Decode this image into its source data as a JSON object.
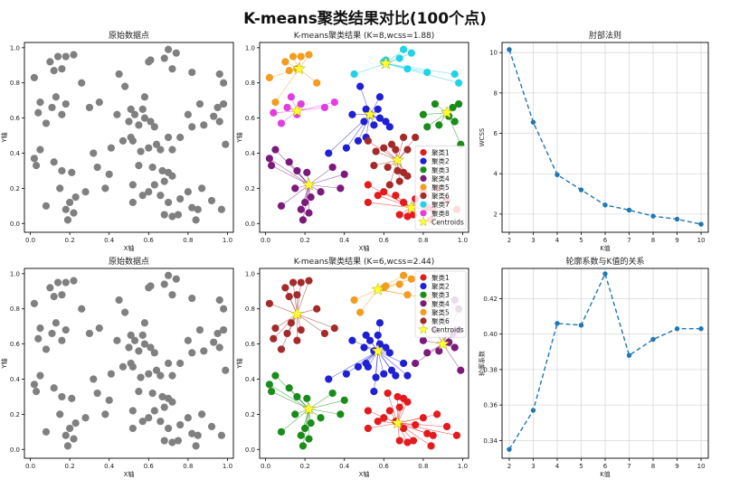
{
  "suptitle": "K-means聚类结果对比(100个点)",
  "chart_data": [
    {
      "id": "raw-top",
      "type": "scatter",
      "title": "原始数据点",
      "xlabel": "X轴",
      "ylabel": "Y轴",
      "xlim": [
        -0.03,
        1.03
      ],
      "ylim": [
        -0.05,
        1.03
      ],
      "xticks": [
        0.0,
        0.2,
        0.4,
        0.6,
        0.8,
        1.0
      ],
      "yticks": [
        0.0,
        0.2,
        0.4,
        0.6,
        0.8,
        1.0
      ],
      "tick_labels_x": [
        "0.0",
        "0.2",
        "0.4",
        "0.6",
        "0.8",
        "1.0"
      ],
      "tick_labels_y": [
        "0.0",
        "0.2",
        "0.4",
        "0.6",
        "0.8",
        "1.0"
      ],
      "grid": false,
      "point_color": "#808080",
      "dataset": "points"
    },
    {
      "id": "kmeans-8",
      "type": "scatter",
      "title": "K-means聚类结果 (K=8,wcss=1.88)",
      "xlabel": "X轴",
      "ylabel": "Y轴",
      "xlim": [
        -0.03,
        1.03
      ],
      "ylim": [
        -0.05,
        1.03
      ],
      "xticks": [
        0.0,
        0.2,
        0.4,
        0.6,
        0.8,
        1.0
      ],
      "yticks": [
        0.0,
        0.2,
        0.4,
        0.6,
        0.8,
        1.0
      ],
      "tick_labels_x": [
        "0.0",
        "0.2",
        "0.4",
        "0.6",
        "0.8",
        "1.0"
      ],
      "tick_labels_y": [
        "0.0",
        "0.2",
        "0.4",
        "0.6",
        "0.8",
        "1.0"
      ],
      "grid": false,
      "legend_position": "lower-right",
      "series": [
        {
          "name": "聚类1",
          "color": "#e41a1c",
          "centroid": [
            0.74,
            0.09
          ]
        },
        {
          "name": "聚类2",
          "color": "#1f1fd6",
          "centroid": [
            0.53,
            0.62
          ]
        },
        {
          "name": "聚类3",
          "color": "#1a8c1a",
          "centroid": [
            0.92,
            0.63
          ]
        },
        {
          "name": "聚类4",
          "color": "#7b1a7b",
          "centroid": [
            0.22,
            0.22
          ]
        },
        {
          "name": "聚类5",
          "color": "#f39c1f",
          "centroid": [
            0.17,
            0.88
          ]
        },
        {
          "name": "聚类6",
          "color": "#a52a2a",
          "centroid": [
            0.67,
            0.36
          ]
        },
        {
          "name": "聚类7",
          "color": "#22d3e6",
          "centroid": [
            0.61,
            0.91
          ]
        },
        {
          "name": "聚类8",
          "color": "#e23ce2",
          "centroid": [
            0.16,
            0.64
          ]
        }
      ],
      "centroids_label": "Centroids",
      "centroid_color": "#ffff33",
      "dataset": "points",
      "labels_key": "labels_k8"
    },
    {
      "id": "elbow",
      "type": "line",
      "title": "肘部法则",
      "xlabel": "K值",
      "ylabel": "WCSS",
      "xlim": [
        1.7,
        10.3
      ],
      "ylim": [
        1.1,
        10.5
      ],
      "xticks": [
        2,
        3,
        4,
        5,
        6,
        7,
        8,
        9,
        10
      ],
      "yticks": [
        2,
        4,
        6,
        8,
        10
      ],
      "tick_labels_x": [
        "2",
        "3",
        "4",
        "5",
        "6",
        "7",
        "8",
        "9",
        "10"
      ],
      "tick_labels_y": [
        "2",
        "4",
        "6",
        "8",
        "10"
      ],
      "grid": true,
      "line_color": "#1f77b4",
      "line_style": "dashed",
      "x": [
        2,
        3,
        4,
        5,
        6,
        7,
        8,
        9,
        10
      ],
      "values": [
        10.15,
        6.55,
        3.95,
        3.2,
        2.45,
        2.2,
        1.9,
        1.75,
        1.5
      ]
    },
    {
      "id": "raw-bottom",
      "type": "scatter",
      "title": "原始数据点",
      "xlabel": "X轴",
      "ylabel": "Y轴",
      "xlim": [
        -0.03,
        1.03
      ],
      "ylim": [
        -0.05,
        1.03
      ],
      "xticks": [
        0.0,
        0.2,
        0.4,
        0.6,
        0.8,
        1.0
      ],
      "yticks": [
        0.0,
        0.2,
        0.4,
        0.6,
        0.8,
        1.0
      ],
      "tick_labels_x": [
        "0.0",
        "0.2",
        "0.4",
        "0.6",
        "0.8",
        "1.0"
      ],
      "tick_labels_y": [
        "0.0",
        "0.2",
        "0.4",
        "0.6",
        "0.8",
        "1.0"
      ],
      "grid": false,
      "point_color": "#808080",
      "dataset": "points"
    },
    {
      "id": "kmeans-6",
      "type": "scatter",
      "title": "K-means聚类结果 (K=6,wcss=2.44)",
      "xlabel": "X轴",
      "ylabel": "Y轴",
      "xlim": [
        -0.03,
        1.03
      ],
      "ylim": [
        -0.05,
        1.03
      ],
      "xticks": [
        0.0,
        0.2,
        0.4,
        0.6,
        0.8,
        1.0
      ],
      "yticks": [
        0.0,
        0.2,
        0.4,
        0.6,
        0.8,
        1.0
      ],
      "tick_labels_x": [
        "0.0",
        "0.2",
        "0.4",
        "0.6",
        "0.8",
        "1.0"
      ],
      "tick_labels_y": [
        "0.0",
        "0.2",
        "0.4",
        "0.6",
        "0.8",
        "1.0"
      ],
      "grid": false,
      "legend_position": "upper-right",
      "series": [
        {
          "name": "聚类1",
          "color": "#e41a1c",
          "centroid": [
            0.67,
            0.15
          ]
        },
        {
          "name": "聚类2",
          "color": "#1f1fd6",
          "centroid": [
            0.57,
            0.56
          ]
        },
        {
          "name": "聚类3",
          "color": "#1a8c1a",
          "centroid": [
            0.22,
            0.23
          ]
        },
        {
          "name": "聚类4",
          "color": "#7b1a7b",
          "centroid": [
            0.9,
            0.6
          ]
        },
        {
          "name": "聚类5",
          "color": "#f39c1f",
          "centroid": [
            0.57,
            0.91
          ]
        },
        {
          "name": "聚类6",
          "color": "#a52a2a",
          "centroid": [
            0.16,
            0.77
          ]
        }
      ],
      "centroids_label": "Centroids",
      "centroid_color": "#ffff33",
      "dataset": "points",
      "labels_key": "labels_k6"
    },
    {
      "id": "silhouette",
      "type": "line",
      "title": "轮廓系数与K值的关系",
      "xlabel": "K值",
      "ylabel": "轮廓系数",
      "xlim": [
        1.7,
        10.3
      ],
      "ylim": [
        0.33,
        0.437
      ],
      "xticks": [
        2,
        3,
        4,
        5,
        6,
        7,
        8,
        9,
        10
      ],
      "yticks": [
        0.34,
        0.36,
        0.38,
        0.4,
        0.42
      ],
      "tick_labels_x": [
        "2",
        "3",
        "4",
        "5",
        "6",
        "7",
        "8",
        "9",
        "10"
      ],
      "tick_labels_y": [
        "0.34",
        "0.36",
        "0.38",
        "0.40",
        "0.42"
      ],
      "grid": true,
      "line_color": "#1f77b4",
      "line_style": "dashed",
      "x": [
        2,
        3,
        4,
        5,
        6,
        7,
        8,
        9,
        10
      ],
      "values": [
        0.335,
        0.357,
        0.406,
        0.405,
        0.434,
        0.388,
        0.397,
        0.403,
        0.403
      ]
    }
  ],
  "points": [
    [
      0.02,
      0.83
    ],
    [
      0.05,
      0.69
    ],
    [
      0.1,
      0.92
    ],
    [
      0.14,
      0.95
    ],
    [
      0.18,
      0.95
    ],
    [
      0.22,
      0.96
    ],
    [
      0.12,
      0.87
    ],
    [
      0.16,
      0.88
    ],
    [
      0.26,
      0.8
    ],
    [
      0.04,
      0.63
    ],
    [
      0.11,
      0.66
    ],
    [
      0.13,
      0.72
    ],
    [
      0.16,
      0.62
    ],
    [
      0.18,
      0.68
    ],
    [
      0.08,
      0.57
    ],
    [
      0.3,
      0.66
    ],
    [
      0.35,
      0.69
    ],
    [
      0.05,
      0.42
    ],
    [
      0.02,
      0.37
    ],
    [
      0.03,
      0.33
    ],
    [
      0.12,
      0.35
    ],
    [
      0.16,
      0.3
    ],
    [
      0.21,
      0.29
    ],
    [
      0.15,
      0.2
    ],
    [
      0.23,
      0.15
    ],
    [
      0.2,
      0.12
    ],
    [
      0.18,
      0.08
    ],
    [
      0.08,
      0.1
    ],
    [
      0.22,
      0.06
    ],
    [
      0.28,
      0.18
    ],
    [
      0.19,
      0.02
    ],
    [
      0.34,
      0.32
    ],
    [
      0.38,
      0.2
    ],
    [
      0.32,
      0.4
    ],
    [
      0.41,
      0.43
    ],
    [
      0.47,
      0.47
    ],
    [
      0.5,
      0.58
    ],
    [
      0.51,
      0.49
    ],
    [
      0.53,
      0.62
    ],
    [
      0.55,
      0.56
    ],
    [
      0.58,
      0.6
    ],
    [
      0.61,
      0.58
    ],
    [
      0.63,
      0.55
    ],
    [
      0.57,
      0.65
    ],
    [
      0.58,
      0.72
    ],
    [
      0.51,
      0.65
    ],
    [
      0.44,
      0.62
    ],
    [
      0.48,
      0.78
    ],
    [
      0.45,
      0.85
    ],
    [
      0.6,
      0.92
    ],
    [
      0.61,
      0.93
    ],
    [
      0.68,
      0.94
    ],
    [
      0.7,
      0.99
    ],
    [
      0.74,
      0.97
    ],
    [
      0.72,
      0.88
    ],
    [
      0.82,
      0.86
    ],
    [
      0.96,
      0.85
    ],
    [
      0.98,
      0.8
    ],
    [
      0.86,
      0.68
    ],
    [
      0.88,
      0.56
    ],
    [
      0.93,
      0.61
    ],
    [
      0.95,
      0.66
    ],
    [
      0.98,
      0.68
    ],
    [
      0.96,
      0.58
    ],
    [
      0.8,
      0.62
    ],
    [
      0.82,
      0.55
    ],
    [
      0.76,
      0.49
    ],
    [
      0.7,
      0.49
    ],
    [
      0.72,
      0.42
    ],
    [
      0.66,
      0.42
    ],
    [
      0.64,
      0.45
    ],
    [
      0.6,
      0.43
    ],
    [
      0.56,
      0.41
    ],
    [
      0.52,
      0.47
    ],
    [
      0.55,
      0.33
    ],
    [
      0.62,
      0.32
    ],
    [
      0.67,
      0.3
    ],
    [
      0.7,
      0.29
    ],
    [
      0.72,
      0.27
    ],
    [
      0.68,
      0.24
    ],
    [
      0.63,
      0.22
    ],
    [
      0.6,
      0.18
    ],
    [
      0.57,
      0.16
    ],
    [
      0.52,
      0.22
    ],
    [
      0.52,
      0.12
    ],
    [
      0.66,
      0.16
    ],
    [
      0.7,
      0.12
    ],
    [
      0.72,
      0.04
    ],
    [
      0.68,
      0.05
    ],
    [
      0.75,
      0.05
    ],
    [
      0.82,
      0.09
    ],
    [
      0.85,
      0.08
    ],
    [
      0.84,
      0.02
    ],
    [
      0.76,
      0.14
    ],
    [
      0.8,
      0.18
    ],
    [
      0.87,
      0.2
    ],
    [
      0.92,
      0.13
    ],
    [
      0.97,
      0.08
    ],
    [
      0.99,
      0.45
    ],
    [
      0.4,
      0.28
    ]
  ],
  "labels_k8": [
    4,
    4,
    4,
    4,
    4,
    4,
    4,
    4,
    4,
    7,
    7,
    7,
    7,
    7,
    7,
    7,
    7,
    3,
    3,
    3,
    3,
    3,
    3,
    3,
    3,
    3,
    3,
    3,
    3,
    3,
    3,
    3,
    3,
    1,
    1,
    1,
    1,
    1,
    1,
    1,
    1,
    1,
    1,
    1,
    1,
    1,
    1,
    1,
    6,
    6,
    6,
    6,
    6,
    6,
    6,
    6,
    6,
    6,
    2,
    2,
    2,
    2,
    2,
    2,
    2,
    2,
    5,
    5,
    5,
    5,
    5,
    5,
    5,
    5,
    5,
    5,
    5,
    5,
    5,
    5,
    5,
    0,
    0,
    0,
    0,
    0,
    0,
    0,
    0,
    0,
    0,
    0,
    0,
    0,
    0,
    0,
    0,
    0,
    2,
    3
  ],
  "labels_k6": [
    5,
    5,
    5,
    5,
    5,
    5,
    5,
    5,
    5,
    5,
    5,
    5,
    5,
    5,
    5,
    5,
    5,
    2,
    2,
    2,
    2,
    2,
    2,
    2,
    2,
    2,
    2,
    2,
    2,
    2,
    2,
    2,
    2,
    1,
    1,
    1,
    1,
    1,
    1,
    1,
    1,
    1,
    1,
    1,
    1,
    1,
    1,
    4,
    4,
    4,
    4,
    4,
    4,
    4,
    4,
    4,
    3,
    3,
    3,
    3,
    3,
    3,
    3,
    3,
    3,
    3,
    3,
    1,
    1,
    1,
    1,
    1,
    1,
    1,
    1,
    0,
    0,
    0,
    0,
    0,
    0,
    0,
    0,
    0,
    0,
    0,
    0,
    0,
    0,
    0,
    0,
    0,
    0,
    0,
    0,
    0,
    0,
    0,
    3,
    2
  ]
}
